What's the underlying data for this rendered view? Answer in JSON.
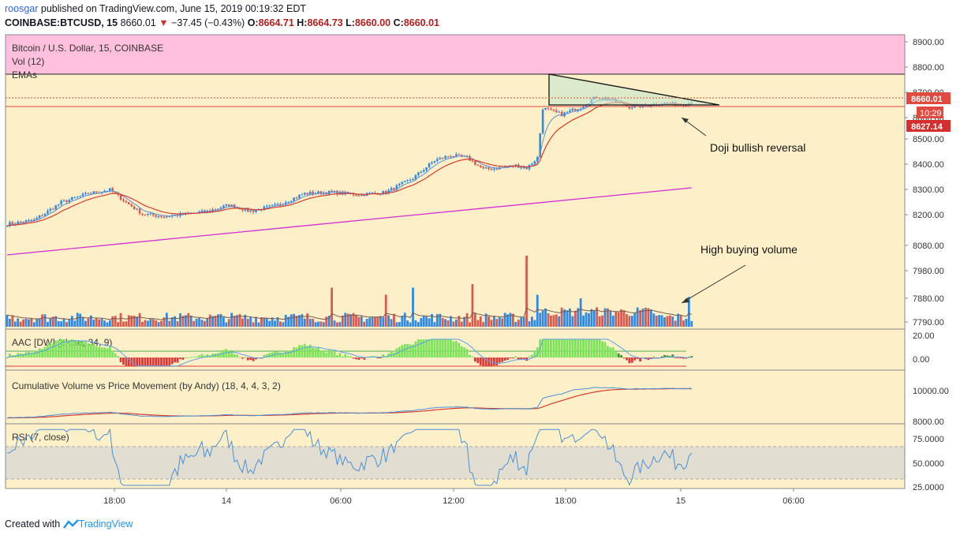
{
  "header": {
    "author": "roosgar",
    "published": "published on TradingView.com, June 15, 2019 00:19:32 EDT",
    "symbol": "COINBASE:BTCUSD, 15",
    "last": "8660.01",
    "change": "−37.45 (−0.43%)",
    "o_label": "O:",
    "o": "8664.71",
    "h_label": "H:",
    "h": "8664.73",
    "l_label": "L:",
    "l": "8660.00",
    "c_label": "C:",
    "c": "8660.01"
  },
  "colors": {
    "background": "#fdf0c9",
    "pink_band": "#ffbfdd",
    "up": "#2e8ae6",
    "down": "#d95a4f",
    "ema_fast": "#5b8fd6",
    "ema_slow": "#d93b2a",
    "ema_long": "#d62bd6",
    "rsi": "#4a90d9",
    "aac_pos": "#7de35a",
    "aac_neg": "#d93a3a"
  },
  "labels": {
    "instrument": "Bitcoin / U.S. Dollar, 15, COINBASE",
    "vol": "Vol (12)",
    "emas": "EMAs",
    "aac": "AAC [DW] (close, 34, 9)",
    "cvp": "Cumulative Volume vs Price Movement (by Andy) (18, 4, 4, 3, 2)",
    "rsi": "RSI (7, close)",
    "annotation_doji": "Doji bullish reversal",
    "annotation_volume": "High buying volume"
  },
  "price_badges": {
    "last": "8660.01",
    "countdown": "10:29",
    "ema": "8627.14"
  },
  "footer": {
    "created": "Created with",
    "brand": "TradingView"
  },
  "chart_data": {
    "type": "candlestick",
    "x_ticks": [
      "18:00",
      "14",
      "06:00",
      "12:00",
      "18:00",
      "15",
      "06:00"
    ],
    "price_axis": [
      "8900.00",
      "8800.00",
      "8700.00",
      "8600.00",
      "8500.00",
      "8400.00",
      "8300.00",
      "8200.00",
      "8080.00",
      "7980.00",
      "7880.00",
      "7790.00"
    ],
    "aac_axis": [
      "20.00",
      "0.00"
    ],
    "cvp_axis": [
      "10000.00",
      "8000.00"
    ],
    "rsi_axis": [
      "75.0000",
      "50.0000",
      "25.0000"
    ],
    "close_anchors": [
      [
        0,
        8185
      ],
      [
        10,
        8200
      ],
      [
        20,
        8270
      ],
      [
        30,
        8305
      ],
      [
        38,
        8320
      ],
      [
        44,
        8270
      ],
      [
        50,
        8225
      ],
      [
        58,
        8215
      ],
      [
        66,
        8225
      ],
      [
        74,
        8235
      ],
      [
        82,
        8260
      ],
      [
        90,
        8235
      ],
      [
        100,
        8260
      ],
      [
        110,
        8305
      ],
      [
        120,
        8310
      ],
      [
        130,
        8300
      ],
      [
        140,
        8310
      ],
      [
        150,
        8365
      ],
      [
        158,
        8435
      ],
      [
        164,
        8455
      ],
      [
        170,
        8445
      ],
      [
        176,
        8400
      ],
      [
        182,
        8405
      ],
      [
        188,
        8415
      ],
      [
        192,
        8405
      ],
      [
        196,
        8445
      ],
      [
        198,
        8640
      ],
      [
        205,
        8615
      ],
      [
        212,
        8645
      ],
      [
        218,
        8685
      ],
      [
        224,
        8670
      ],
      [
        230,
        8645
      ],
      [
        236,
        8650
      ],
      [
        242,
        8660
      ],
      [
        248,
        8655
      ],
      [
        253,
        8660
      ]
    ],
    "volume_spikes": {
      "120": 55,
      "140": 45,
      "150": 55,
      "172": 60,
      "192": 100,
      "196": 45,
      "212": 40,
      "252": 42
    },
    "ema_long_range": [
      8035,
      8305
    ]
  }
}
